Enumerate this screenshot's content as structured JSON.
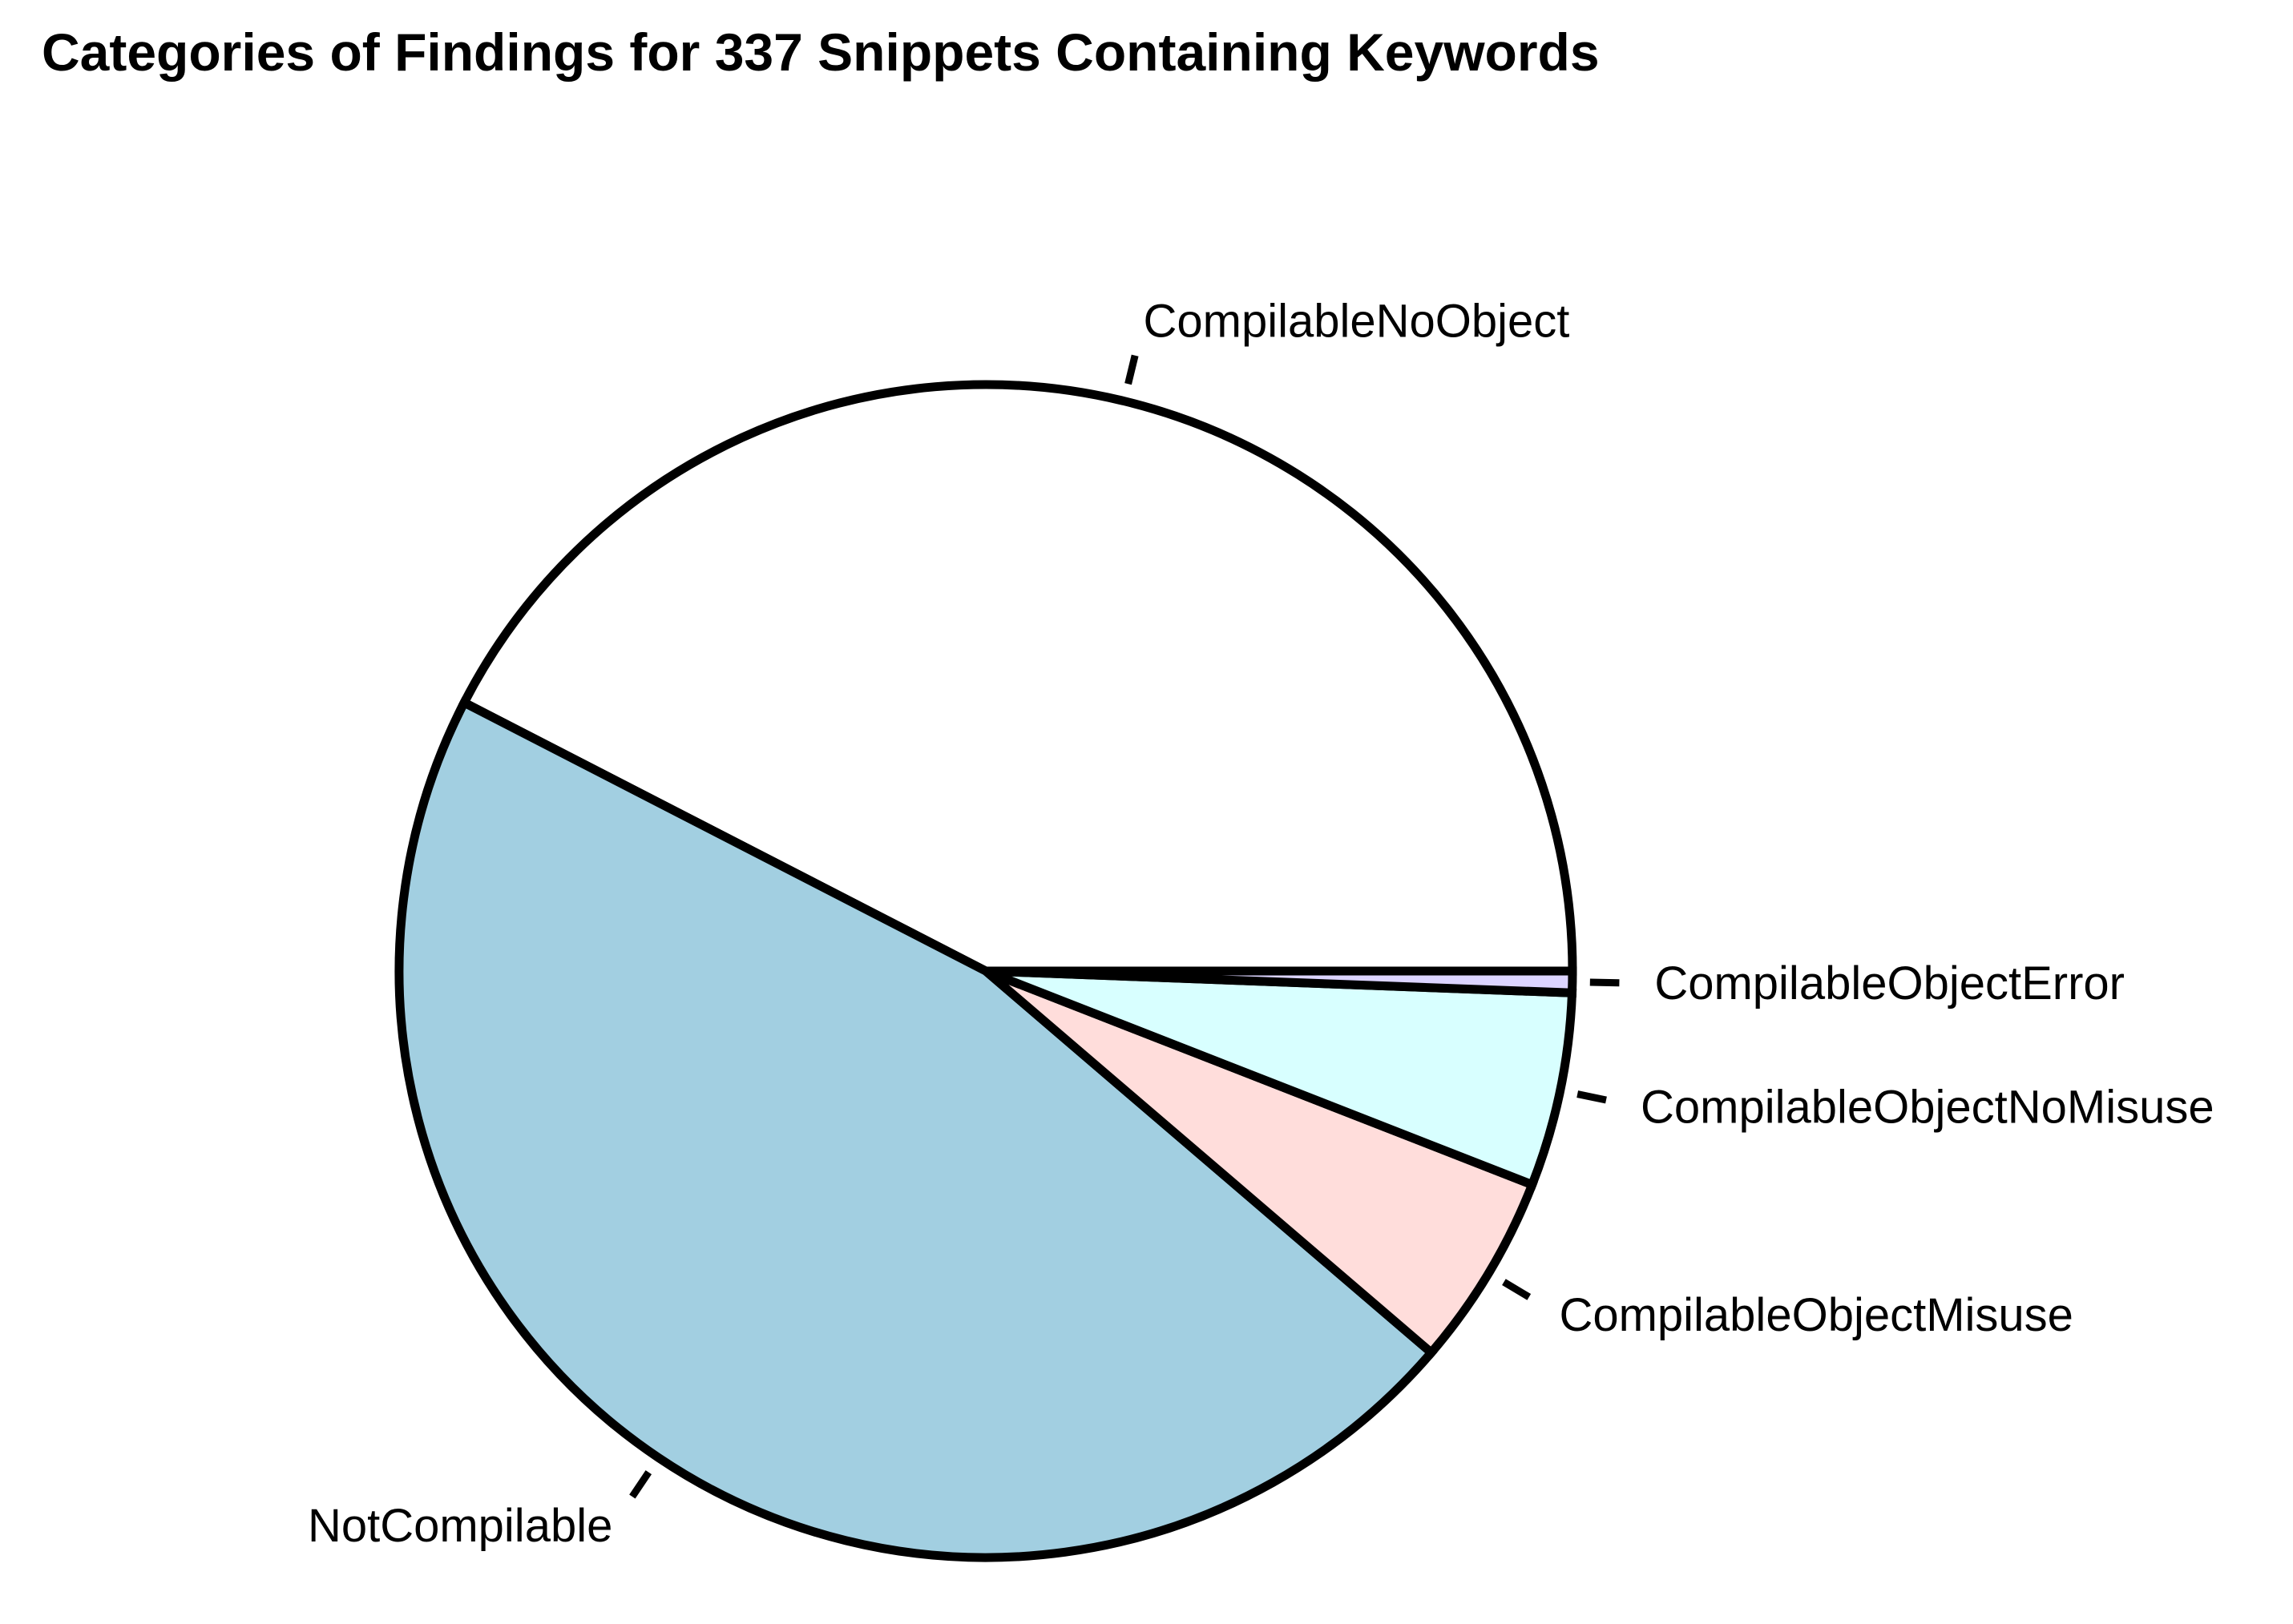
{
  "chart_data": {
    "type": "pie",
    "title": "Categories of Findings for 337 Snippets Containing Keywords",
    "start_angle_deg": 0,
    "direction": "counterclockwise",
    "slices": [
      {
        "label": "CompilableNoObject",
        "value": 143,
        "color": "#ffffff"
      },
      {
        "label": "NotCompilable",
        "value": 156,
        "color": "#a2cfe1"
      },
      {
        "label": "CompilableObjectMisuse",
        "value": 18,
        "color": "#ffdddb"
      },
      {
        "label": "CompilableObjectNoMisuse",
        "value": 18,
        "color": "#d8ffff"
      },
      {
        "label": "CompilableObjectError",
        "value": 2,
        "color": "#dcd4ff"
      }
    ]
  }
}
